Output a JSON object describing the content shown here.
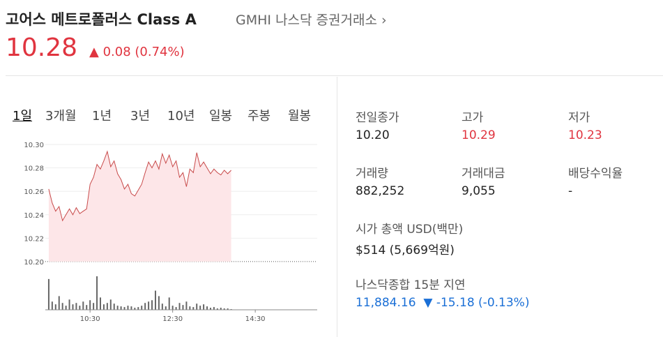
{
  "header": {
    "name": "고어스 메트로폴러스 Class A",
    "ticker": "GMHI",
    "exchange": "나스닥 증권거래소",
    "price": "10.28",
    "change": "0.08",
    "change_percent": "(0.74%)"
  },
  "tabs": [
    "1일",
    "3개월",
    "1년",
    "3년",
    "10년",
    "일봉",
    "주봉",
    "월봉"
  ],
  "chart_data": {
    "type": "line",
    "color": "#c84a4a",
    "fill": "#fde6e8",
    "x": [
      "09:30",
      "09:35",
      "09:40",
      "09:45",
      "09:50",
      "09:55",
      "10:00",
      "10:05",
      "10:10",
      "10:15",
      "10:20",
      "10:25",
      "10:30",
      "10:35",
      "10:40",
      "10:45",
      "10:50",
      "10:55",
      "11:00",
      "11:05",
      "11:10",
      "11:15",
      "11:20",
      "11:25",
      "11:30",
      "11:35",
      "11:40",
      "11:45",
      "11:50",
      "11:55",
      "12:00",
      "12:05",
      "12:10",
      "12:15",
      "12:20",
      "12:25",
      "12:30",
      "12:35",
      "12:40",
      "12:45",
      "12:50",
      "12:55",
      "13:00",
      "13:05",
      "13:10",
      "13:15",
      "13:20",
      "13:25",
      "13:30",
      "13:35",
      "13:40",
      "13:45",
      "13:50",
      "13:55"
    ],
    "values": [
      10.262,
      10.25,
      10.243,
      10.247,
      10.235,
      10.24,
      10.245,
      10.24,
      10.246,
      10.241,
      10.243,
      10.245,
      10.266,
      10.272,
      10.283,
      10.279,
      10.286,
      10.294,
      10.281,
      10.286,
      10.275,
      10.27,
      10.262,
      10.266,
      10.258,
      10.256,
      10.261,
      10.266,
      10.276,
      10.285,
      10.28,
      10.286,
      10.279,
      10.292,
      10.284,
      10.291,
      10.281,
      10.286,
      10.272,
      10.276,
      10.264,
      10.279,
      10.276,
      10.293,
      10.281,
      10.285,
      10.28,
      10.275,
      10.279,
      10.276,
      10.274,
      10.278,
      10.275,
      10.278
    ],
    "volume": [
      45,
      12,
      8,
      20,
      10,
      6,
      15,
      8,
      10,
      6,
      12,
      7,
      14,
      10,
      49,
      18,
      8,
      10,
      15,
      9,
      6,
      5,
      4,
      6,
      5,
      3,
      4,
      6,
      10,
      12,
      14,
      28,
      20,
      9,
      5,
      18,
      6,
      4,
      10,
      7,
      12,
      5,
      4,
      9,
      6,
      8,
      5,
      3,
      4,
      2,
      3,
      2,
      2,
      1
    ],
    "volume_ylim": [
      0,
      50
    ],
    "xlim": [
      "09:25",
      "16:00"
    ],
    "xticks": [
      "10:30",
      "12:30",
      "14:30"
    ],
    "ylim": [
      10.194,
      10.306
    ],
    "yticks": [
      {
        "value": 10.2,
        "label": "10.20"
      },
      10.22,
      10.24,
      10.26,
      10.28,
      {
        "value": 10.3,
        "label": "10.30"
      }
    ],
    "grid": true
  },
  "stats": [
    {
      "label": "전일종가",
      "value": "10.20"
    },
    {
      "label": "고가",
      "value": "10.29",
      "color": "#e0343f"
    },
    {
      "label": "저가",
      "value": "10.23",
      "color": "#e0343f"
    },
    {
      "label": "거래량",
      "value": "882,252"
    },
    {
      "label": "거래대금",
      "value": "9,055"
    },
    {
      "label": "배당수익율",
      "value": "-"
    }
  ],
  "market_cap": {
    "label": "시가 총액 USD(백만)",
    "value": "$514 (5,669억원)"
  },
  "index": {
    "name": "나스닥종합 15분 지연",
    "value": "11,884.16",
    "change": "-15.18",
    "change_percent": "(-0.13%)"
  }
}
